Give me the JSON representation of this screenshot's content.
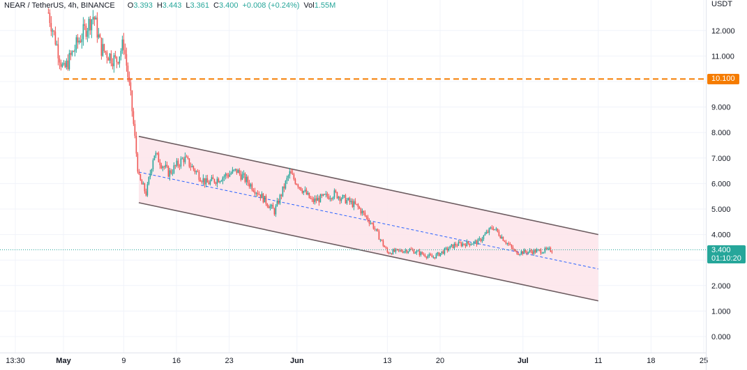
{
  "legend": {
    "symbol": "NEAR / TetherUS, 4h, BINANCE",
    "open_label": "O",
    "open": "3.393",
    "high_label": "H",
    "high": "3.443",
    "low_label": "L",
    "low": "3.361",
    "close_label": "C",
    "close": "3.400",
    "change": "+0.008 (+0.24%)",
    "volume_label": "Vol",
    "volume": "1.55M"
  },
  "price_axis": {
    "currency": "USDT",
    "ticks": [
      "12.000",
      "11.000",
      "10.000",
      "9.000",
      "8.000",
      "7.000",
      "6.000",
      "5.000",
      "4.000",
      "3.000",
      "2.000",
      "1.000",
      "0.000"
    ]
  },
  "time_axis": {
    "ticks": [
      "13:30",
      "May",
      "9",
      "16",
      "23",
      "Jun",
      "13",
      "20",
      "Jul",
      "11",
      "18",
      "25"
    ]
  },
  "level_tag": "10.100",
  "last_price_tag": {
    "price": "3.400",
    "countdown": "01:10:20"
  },
  "colors": {
    "up": "#26a69a",
    "down": "#ef5350",
    "level": "#f57c00",
    "channel_fill": "#fde4ea",
    "channel_line": "#6b5b5f",
    "midline": "#2962ff",
    "grid": "#f0f3fa"
  },
  "chart_data": {
    "type": "candlestick",
    "symbol": "NEAR / TetherUS",
    "timeframe": "4h",
    "exchange": "BINANCE",
    "y_unit": "USDT",
    "ylim": [
      -0.3,
      13.0
    ],
    "x_range": [
      "2022-04-29",
      "2022-07-26"
    ],
    "horizontal_level": {
      "price": 10.1,
      "from": "2022-05-01",
      "style": "dashed"
    },
    "channel": {
      "upper": [
        [
          "2022-05-11",
          7.85
        ],
        [
          "2022-07-11",
          4.0
        ]
      ],
      "lower": [
        [
          "2022-05-11",
          5.25
        ],
        [
          "2022-07-11",
          1.4
        ]
      ],
      "mid": [
        [
          "2022-05-11",
          6.45
        ],
        [
          "2022-07-11",
          2.65
        ]
      ]
    },
    "last_price": 3.4,
    "approx_close_path": [
      [
        "2022-04-29",
        12.7
      ],
      [
        "2022-05-01",
        10.4
      ],
      [
        "2022-05-03",
        11.6
      ],
      [
        "2022-05-05",
        12.6
      ],
      [
        "2022-05-06",
        11.3
      ],
      [
        "2022-05-08",
        10.8
      ],
      [
        "2022-05-09",
        11.5
      ],
      [
        "2022-05-10",
        9.2
      ],
      [
        "2022-05-11",
        6.2
      ],
      [
        "2022-05-12",
        5.6
      ],
      [
        "2022-05-13",
        7.2
      ],
      [
        "2022-05-15",
        6.4
      ],
      [
        "2022-05-17",
        7.0
      ],
      [
        "2022-05-20",
        6.0
      ],
      [
        "2022-05-24",
        6.5
      ],
      [
        "2022-05-27",
        5.6
      ],
      [
        "2022-05-29",
        4.9
      ],
      [
        "2022-05-31",
        6.4
      ],
      [
        "2022-06-03",
        5.3
      ],
      [
        "2022-06-06",
        5.6
      ],
      [
        "2022-06-09",
        5.1
      ],
      [
        "2022-06-11",
        4.4
      ],
      [
        "2022-06-13",
        3.3
      ],
      [
        "2022-06-16",
        3.4
      ],
      [
        "2022-06-19",
        3.1
      ],
      [
        "2022-06-22",
        3.6
      ],
      [
        "2022-06-25",
        3.7
      ],
      [
        "2022-06-27",
        4.3
      ],
      [
        "2022-06-30",
        3.3
      ],
      [
        "2022-07-03",
        3.35
      ],
      [
        "2022-07-05",
        3.4
      ]
    ]
  }
}
